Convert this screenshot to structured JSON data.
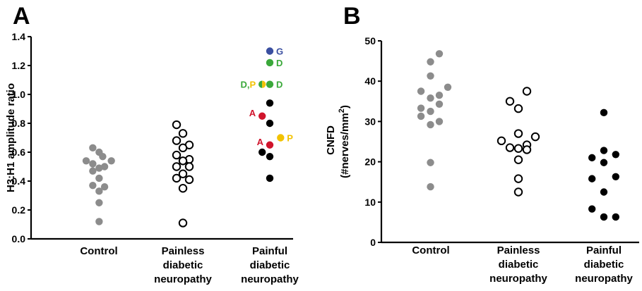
{
  "colors": {
    "control": "#8c8c8c",
    "painless_fill": "#ffffff",
    "painful": "#000000",
    "G": "#3a4fa0",
    "D": "#3aa83a",
    "P": "#f2c200",
    "A": "#d0142c"
  },
  "chart_data": [
    {
      "type": "scatter",
      "panel": "A",
      "ylabel": "H3:H1 amplitude ratio",
      "ylim": [
        0,
        1.4
      ],
      "yticks": [
        "0.0",
        "0.2",
        "0.4",
        "0.6",
        "0.8",
        "1.0",
        "1.2",
        "1.4"
      ],
      "yticks_values": [
        0,
        0.2,
        0.4,
        0.6,
        0.8,
        1.0,
        1.2,
        1.4
      ],
      "categories": [
        [
          "Control"
        ],
        [
          "Painless",
          "diabetic",
          "neuropathy"
        ],
        [
          "Painful",
          "diabetic",
          "neuropathy"
        ]
      ],
      "series": [
        {
          "group": 0,
          "style": "control",
          "points": [
            {
              "y": 0.63,
              "j": -0.48
            },
            {
              "y": 0.6,
              "j": 0.02
            },
            {
              "y": 0.57,
              "j": 0.3
            },
            {
              "y": 0.54,
              "j": -1.0
            },
            {
              "y": 0.54,
              "j": 0.98
            },
            {
              "y": 0.52,
              "j": -0.48
            },
            {
              "y": 0.5,
              "j": 0.45
            },
            {
              "y": 0.49,
              "j": 0.02
            },
            {
              "y": 0.47,
              "j": -0.48
            },
            {
              "y": 0.42,
              "j": 0.02
            },
            {
              "y": 0.37,
              "j": -0.48
            },
            {
              "y": 0.36,
              "j": 0.45
            },
            {
              "y": 0.33,
              "j": 0.02
            },
            {
              "y": 0.25,
              "j": 0.02
            },
            {
              "y": 0.12,
              "j": 0.02
            }
          ]
        },
        {
          "group": 1,
          "style": "painless",
          "points": [
            {
              "y": 0.79,
              "j": -0.5
            },
            {
              "y": 0.73,
              "j": 0.0
            },
            {
              "y": 0.68,
              "j": -0.5
            },
            {
              "y": 0.65,
              "j": 0.5
            },
            {
              "y": 0.63,
              "j": 0.0
            },
            {
              "y": 0.58,
              "j": -0.5
            },
            {
              "y": 0.55,
              "j": 0.5
            },
            {
              "y": 0.54,
              "j": 0.0
            },
            {
              "y": 0.5,
              "j": -0.5
            },
            {
              "y": 0.5,
              "j": 0.5
            },
            {
              "y": 0.45,
              "j": 0.0
            },
            {
              "y": 0.42,
              "j": -0.5
            },
            {
              "y": 0.41,
              "j": 0.5
            },
            {
              "y": 0.35,
              "j": 0.0
            },
            {
              "y": 0.11,
              "j": 0.0
            }
          ]
        },
        {
          "group": 2,
          "style": "painful",
          "points": [
            {
              "y": 1.3,
              "j": 0.0,
              "label": "G",
              "color": "G",
              "label_side": "right"
            },
            {
              "y": 1.22,
              "j": 0.0,
              "label": "D",
              "color": "D",
              "label_side": "right"
            },
            {
              "y": 1.07,
              "j": -0.6,
              "label": "D,P",
              "color": "DP",
              "label_side": "left"
            },
            {
              "y": 1.07,
              "j": 0.0,
              "label": "D",
              "color": "D",
              "label_side": "right"
            },
            {
              "y": 0.94,
              "j": 0.0
            },
            {
              "y": 0.85,
              "j": -0.6,
              "label": "A",
              "color": "A",
              "label_side": "left"
            },
            {
              "y": 0.8,
              "j": 0.0
            },
            {
              "y": 0.7,
              "j": 0.85,
              "label": "P",
              "color": "P",
              "label_side": "right"
            },
            {
              "y": 0.65,
              "j": 0.0,
              "label": "A",
              "color": "A",
              "label_side": "left"
            },
            {
              "y": 0.6,
              "j": -0.6
            },
            {
              "y": 0.57,
              "j": 0.0
            },
            {
              "y": 0.42,
              "j": 0.0
            }
          ]
        }
      ]
    },
    {
      "type": "scatter",
      "panel": "B",
      "ylabel": "CNFD",
      "ylabel2": "(#nerves/mm",
      "ylabel2_sup": "2",
      "ylabel2_end": ")",
      "ylim": [
        0,
        50
      ],
      "yticks": [
        "0",
        "10",
        "20",
        "30",
        "40",
        "50"
      ],
      "yticks_values": [
        0,
        10,
        20,
        30,
        40,
        50
      ],
      "categories": [
        [
          "Control"
        ],
        [
          "Painless",
          "diabetic",
          "neuropathy"
        ],
        [
          "Painful",
          "diabetic",
          "neuropathy"
        ]
      ],
      "series": [
        {
          "group": 0,
          "style": "control",
          "points": [
            {
              "y": 46.8,
              "j": 0.5
            },
            {
              "y": 44.8,
              "j": -0.02
            },
            {
              "y": 41.3,
              "j": -0.02
            },
            {
              "y": 38.5,
              "j": 1.0
            },
            {
              "y": 37.5,
              "j": -0.58
            },
            {
              "y": 36.5,
              "j": 0.5
            },
            {
              "y": 35.8,
              "j": -0.02
            },
            {
              "y": 34.3,
              "j": 0.5
            },
            {
              "y": 33.3,
              "j": -0.58
            },
            {
              "y": 32.5,
              "j": -0.02
            },
            {
              "y": 31.3,
              "j": -0.58
            },
            {
              "y": 30.0,
              "j": 0.5
            },
            {
              "y": 29.2,
              "j": -0.02
            },
            {
              "y": 19.8,
              "j": -0.02
            },
            {
              "y": 13.8,
              "j": -0.02
            }
          ]
        },
        {
          "group": 1,
          "style": "painless",
          "points": [
            {
              "y": 37.5,
              "j": 0.5
            },
            {
              "y": 35.0,
              "j": -0.5
            },
            {
              "y": 33.2,
              "j": 0.0
            },
            {
              "y": 27.0,
              "j": 0.0
            },
            {
              "y": 26.2,
              "j": 1.0
            },
            {
              "y": 25.2,
              "j": -1.0
            },
            {
              "y": 24.2,
              "j": 0.5
            },
            {
              "y": 23.5,
              "j": -0.5
            },
            {
              "y": 23.3,
              "j": 0.0
            },
            {
              "y": 23.0,
              "j": 0.5
            },
            {
              "y": 20.5,
              "j": 0.0
            },
            {
              "y": 15.8,
              "j": 0.0
            },
            {
              "y": 12.5,
              "j": 0.0
            }
          ]
        },
        {
          "group": 2,
          "style": "painful",
          "points": [
            {
              "y": 32.2,
              "j": 0.0
            },
            {
              "y": 22.8,
              "j": 0.0
            },
            {
              "y": 21.8,
              "j": 0.7
            },
            {
              "y": 21.0,
              "j": -0.7
            },
            {
              "y": 19.8,
              "j": 0.0
            },
            {
              "y": 16.3,
              "j": 0.7
            },
            {
              "y": 15.8,
              "j": -0.7
            },
            {
              "y": 12.5,
              "j": 0.0
            },
            {
              "y": 8.3,
              "j": -0.7
            },
            {
              "y": 6.3,
              "j": 0.0
            },
            {
              "y": 6.3,
              "j": 0.7
            }
          ]
        }
      ]
    }
  ]
}
